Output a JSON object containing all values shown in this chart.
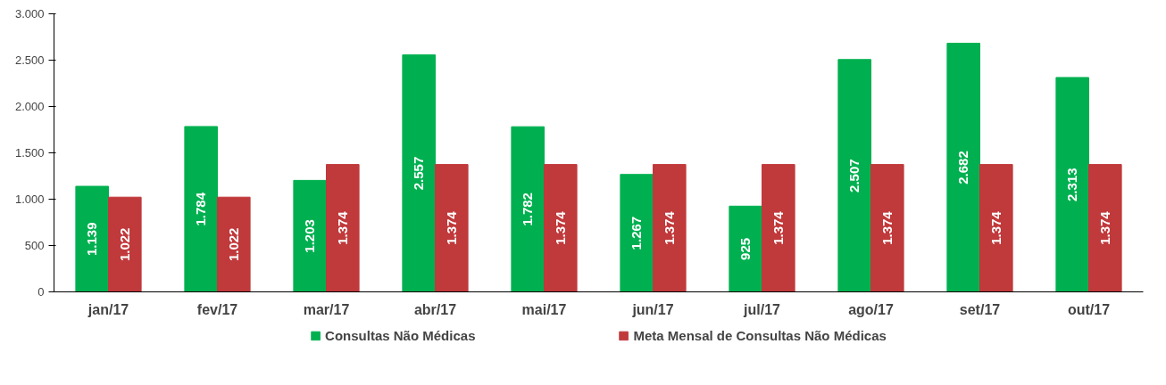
{
  "chart_data": {
    "type": "bar",
    "categories": [
      "jan/17",
      "fev/17",
      "mar/17",
      "abr/17",
      "mai/17",
      "jun/17",
      "jul/17",
      "ago/17",
      "set/17",
      "out/17"
    ],
    "series": [
      {
        "name": "Consultas Não Médicas",
        "color": "#00b050",
        "values": [
          1139,
          1784,
          1203,
          2557,
          1782,
          1267,
          925,
          2507,
          2682,
          2313
        ],
        "value_labels": [
          "1.139",
          "1.784",
          "1.203",
          "2.557",
          "1.782",
          "1.267",
          "925",
          "2.507",
          "2.682",
          "2.313"
        ]
      },
      {
        "name": "Meta Mensal de Consultas Não Médicas",
        "color": "#c0393b",
        "values": [
          1022,
          1022,
          1374,
          1374,
          1374,
          1374,
          1374,
          1374,
          1374,
          1374
        ],
        "value_labels": [
          "1.022",
          "1.022",
          "1.374",
          "1.374",
          "1.374",
          "1.374",
          "1.374",
          "1.374",
          "1.374",
          "1.374"
        ]
      }
    ],
    "ylim": [
      0,
      3000
    ],
    "yticks": [
      0,
      500,
      {
        "value": 1000,
        "label": "1.000"
      },
      {
        "value": 1500,
        "label": "1.500"
      },
      {
        "value": 2000,
        "label": "2.000"
      },
      {
        "value": 2500,
        "label": "2.500"
      },
      {
        "value": 3000,
        "label": "3.000"
      }
    ],
    "grid": false,
    "legend": "bottom"
  }
}
